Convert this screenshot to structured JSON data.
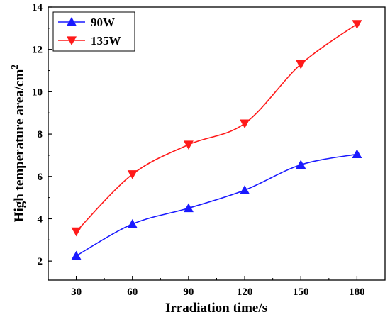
{
  "chart_data": {
    "type": "line",
    "xlabel": "Irradiation time/s",
    "ylabel": "High temperature area/cm",
    "ylabel_superscript": "2",
    "x": [
      30,
      60,
      90,
      120,
      150,
      180
    ],
    "xticks": [
      "30",
      "60",
      "90",
      "120",
      "150",
      "180"
    ],
    "yticks": [
      "2",
      "4",
      "6",
      "8",
      "10",
      "12",
      "14"
    ],
    "xlim": [
      15,
      195
    ],
    "ylim": [
      1.1,
      14
    ],
    "grid": false,
    "legend_position": "top-left",
    "series": [
      {
        "name": "90W",
        "marker": "triangle-up",
        "color": "#1a1aff",
        "values": [
          2.25,
          3.75,
          4.5,
          5.35,
          6.55,
          7.05
        ]
      },
      {
        "name": "135W",
        "marker": "triangle-down",
        "color": "#ff1a1a",
        "values": [
          3.4,
          6.1,
          7.5,
          8.5,
          11.3,
          13.2
        ]
      }
    ]
  }
}
